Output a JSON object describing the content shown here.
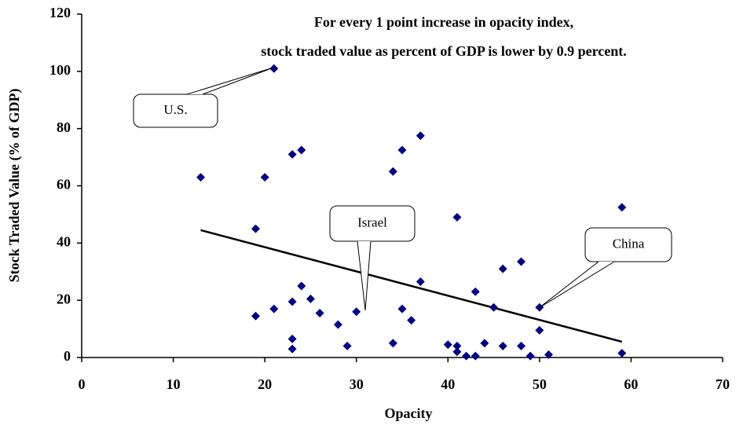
{
  "chart_data": {
    "type": "scatter",
    "annotation_lines": [
      "For every 1 point increase in opacity index,",
      "stock traded value as percent of GDP is lower by 0.9 percent."
    ],
    "x_label": "Opacity",
    "y_label": "Stock Traded Value (% of GDP)",
    "x": [
      13,
      19,
      19,
      20,
      21,
      21,
      23,
      23,
      23,
      23,
      24,
      24,
      25,
      26,
      28,
      29,
      30,
      34,
      34,
      35,
      35,
      36,
      37,
      37,
      40,
      41,
      41,
      41,
      42,
      43,
      43,
      44,
      45,
      46,
      46,
      48,
      48,
      49,
      50,
      50,
      51,
      59,
      59
    ],
    "values": [
      63,
      45,
      14.5,
      63,
      101,
      17,
      71,
      19.5,
      6.5,
      3,
      72.5,
      25,
      20.5,
      15.5,
      11.5,
      4,
      16,
      65,
      5,
      72.5,
      17,
      13,
      77.5,
      26.5,
      4.5,
      49,
      4,
      2,
      0.5,
      23,
      0.5,
      5,
      17.5,
      31,
      4,
      33.5,
      4,
      0.5,
      17.5,
      9.5,
      1,
      52.5,
      1.5
    ],
    "color": "#000080",
    "trend": {
      "x": [
        13,
        59
      ],
      "values": [
        44.5,
        5.5
      ],
      "color": "#000000"
    },
    "callouts": [
      "U.S.",
      "Israel",
      "China"
    ],
    "xlim": [
      0,
      70
    ],
    "xticks": [
      0,
      10,
      20,
      30,
      40,
      50,
      60,
      70
    ],
    "ylim": [
      0,
      120
    ],
    "yticks": [
      0,
      20,
      40,
      60,
      80,
      100,
      120
    ]
  }
}
